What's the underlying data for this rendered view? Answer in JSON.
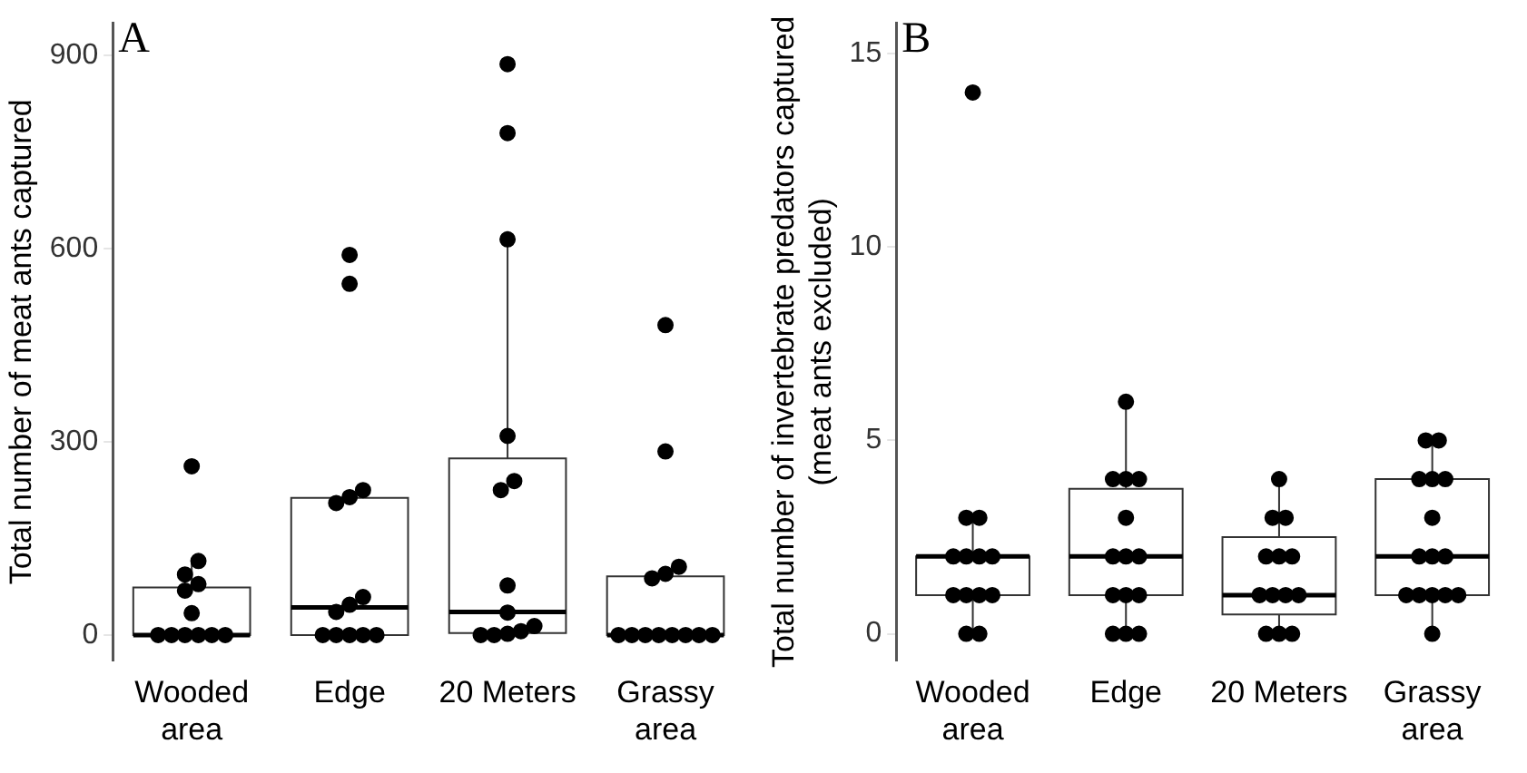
{
  "chart_data": [
    {
      "type": "box",
      "title": "A",
      "ylabel": "Total number of meat ants captured",
      "categories": [
        "Wooded area",
        "Edge",
        "20 Meters",
        "Grassy area"
      ],
      "ylim": [
        -40,
        950
      ],
      "yticks": [
        0,
        300,
        600,
        900
      ],
      "grid": false,
      "legend": false,
      "boxes": [
        {
          "q1": 0,
          "median": 0,
          "q3": 74,
          "high": 115
        },
        {
          "q1": 0,
          "median": 43,
          "q3": 213,
          "high": 223
        },
        {
          "q1": 3,
          "median": 36,
          "q3": 274,
          "high": 614
        },
        {
          "q1": 0,
          "median": 0,
          "q3": 91,
          "high": 106
        }
      ],
      "series": [
        {
          "type": "scatter",
          "color": "#000000",
          "marker": "circle",
          "x": [
            "Wooded area",
            "Wooded area",
            "Wooded area",
            "Wooded area",
            "Wooded area",
            "Wooded area",
            "Wooded area",
            "Wooded area",
            "Wooded area",
            "Wooded area",
            "Wooded area",
            "Wooded area",
            "Edge",
            "Edge",
            "Edge",
            "Edge",
            "Edge",
            "Edge",
            "Edge",
            "Edge",
            "Edge",
            "Edge",
            "Edge",
            "Edge",
            "Edge",
            "20 Meters",
            "20 Meters",
            "20 Meters",
            "20 Meters",
            "20 Meters",
            "20 Meters",
            "20 Meters",
            "20 Meters",
            "20 Meters",
            "20 Meters",
            "20 Meters",
            "20 Meters",
            "20 Meters",
            "Grassy area",
            "Grassy area",
            "Grassy area",
            "Grassy area",
            "Grassy area",
            "Grassy area",
            "Grassy area",
            "Grassy area",
            "Grassy area",
            "Grassy area",
            "Grassy area",
            "Grassy area",
            "Grassy area"
          ],
          "values": [
            262,
            115,
            94,
            69,
            79,
            34,
            0,
            0,
            0,
            0,
            0,
            0,
            590,
            545,
            214,
            205,
            225,
            47,
            59,
            36,
            0,
            0,
            0,
            0,
            0,
            886,
            779,
            614,
            309,
            225,
            239,
            77,
            35,
            14,
            6,
            0,
            0,
            2,
            481,
            285,
            106,
            95,
            88,
            0,
            0,
            0,
            0,
            0,
            0,
            0,
            0
          ]
        }
      ]
    },
    {
      "type": "box",
      "title": "B",
      "ylabel": "Total number of invertebrate predators captured\n(meat ants excluded)",
      "categories": [
        "Wooded area",
        "Edge",
        "20 Meters",
        "Grassy area"
      ],
      "ylim": [
        -0.7,
        15.8
      ],
      "yticks": [
        0,
        5,
        10,
        15
      ],
      "grid": false,
      "legend": false,
      "boxes": [
        {
          "low": 0,
          "q1": 1,
          "median": 2,
          "q3": 2,
          "high": 3
        },
        {
          "low": 0,
          "q1": 1,
          "median": 2,
          "q3": 3.75,
          "high": 6
        },
        {
          "low": 0,
          "q1": 0.5,
          "median": 1,
          "q3": 2.5,
          "high": 4
        },
        {
          "low": 0,
          "q1": 1,
          "median": 2,
          "q3": 4,
          "high": 5
        }
      ],
      "series": [
        {
          "type": "scatter",
          "color": "#000000",
          "marker": "circle",
          "x": [
            "Wooded area",
            "Wooded area",
            "Wooded area",
            "Wooded area",
            "Wooded area",
            "Wooded area",
            "Wooded area",
            "Wooded area",
            "Wooded area",
            "Wooded area",
            "Wooded area",
            "Wooded area",
            "Wooded area",
            "Edge",
            "Edge",
            "Edge",
            "Edge",
            "Edge",
            "Edge",
            "Edge",
            "Edge",
            "Edge",
            "Edge",
            "Edge",
            "Edge",
            "Edge",
            "Edge",
            "20 Meters",
            "20 Meters",
            "20 Meters",
            "20 Meters",
            "20 Meters",
            "20 Meters",
            "20 Meters",
            "20 Meters",
            "20 Meters",
            "20 Meters",
            "20 Meters",
            "20 Meters",
            "20 Meters",
            "Grassy area",
            "Grassy area",
            "Grassy area",
            "Grassy area",
            "Grassy area",
            "Grassy area",
            "Grassy area",
            "Grassy area",
            "Grassy area",
            "Grassy area",
            "Grassy area",
            "Grassy area",
            "Grassy area",
            "Grassy area",
            "Grassy area"
          ],
          "values": [
            14,
            3,
            3,
            2,
            2,
            2,
            2,
            1,
            1,
            1,
            1,
            0,
            0,
            6,
            4,
            4,
            4,
            3,
            2,
            2,
            2,
            1,
            1,
            1,
            0,
            0,
            0,
            4,
            3,
            3,
            2,
            2,
            2,
            1,
            1,
            1,
            1,
            0,
            0,
            0,
            5,
            5,
            4,
            4,
            4,
            3,
            2,
            2,
            2,
            1,
            1,
            1,
            1,
            1,
            0
          ]
        }
      ]
    }
  ]
}
